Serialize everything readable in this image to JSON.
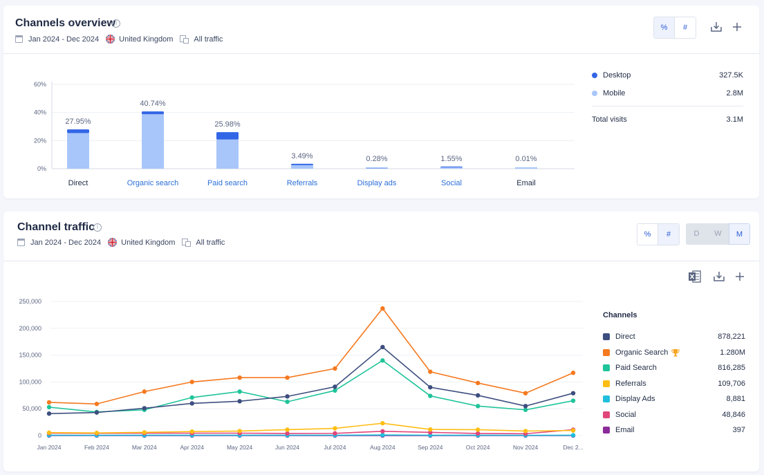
{
  "overview": {
    "title": "Channels overview",
    "info": "i",
    "date_range": "Jan 2024 - Dec 2024",
    "country": "United Kingdom",
    "traffic": "All traffic",
    "toggle": [
      "%",
      "#"
    ],
    "legend": [
      {
        "name": "Desktop",
        "value": "327.5K",
        "color": "#3366e6"
      },
      {
        "name": "Mobile",
        "value": "2.8M",
        "color": "#a8c6fa"
      }
    ],
    "total_label": "Total visits",
    "total_value": "3.1M"
  },
  "traffic": {
    "title": "Channel traffic",
    "info": "i",
    "date_range": "Jan 2024 - Dec 2024",
    "country": "United Kingdom",
    "traffic": "All traffic",
    "toggle": [
      "%",
      "#"
    ],
    "granularity": [
      "D",
      "W",
      "M"
    ],
    "legend_title": "Channels",
    "legend": [
      {
        "name": "Direct",
        "value": "878,221",
        "color": "#3d4e7f",
        "trophy": false
      },
      {
        "name": "Organic Search",
        "value": "1.280M",
        "color": "#f5791f",
        "trophy": true
      },
      {
        "name": "Paid Search",
        "value": "816,285",
        "color": "#1fc49a",
        "trophy": false
      },
      {
        "name": "Referrals",
        "value": "109,706",
        "color": "#ffbd14",
        "trophy": false
      },
      {
        "name": "Display Ads",
        "value": "8,881",
        "color": "#1fbfdd",
        "trophy": false
      },
      {
        "name": "Social",
        "value": "48,846",
        "color": "#e0457b",
        "trophy": false
      },
      {
        "name": "Email",
        "value": "397",
        "color": "#8a2b99",
        "trophy": false
      }
    ]
  },
  "chart_data": [
    {
      "type": "bar",
      "stacked": true,
      "categories": [
        "Direct",
        "Organic search",
        "Paid search",
        "Referrals",
        "Display ads",
        "Social",
        "Email"
      ],
      "category_colors": [
        "#1f2a44",
        "#2b6fd9",
        "#2b6fd9",
        "#2b6fd9",
        "#2b6fd9",
        "#2b6fd9",
        "#1f2a44"
      ],
      "data_labels": [
        "27.95%",
        "40.74%",
        "25.98%",
        "3.49%",
        "0.28%",
        "1.55%",
        "0.01%"
      ],
      "series": [
        {
          "name": "Mobile",
          "values": [
            25.3,
            38.7,
            20.8,
            2.5,
            0.2,
            1.0,
            0.01
          ],
          "color": "#a8c6fa"
        },
        {
          "name": "Desktop",
          "values": [
            2.65,
            2.04,
            5.18,
            0.99,
            0.08,
            0.55,
            0.0
          ],
          "color": "#3366e6"
        }
      ],
      "yticks": [
        "0%",
        "20%",
        "40%",
        "60%"
      ],
      "ylim": [
        0,
        60
      ],
      "grid": true
    },
    {
      "type": "line",
      "x": [
        "Jan 2024",
        "Feb 2024",
        "Mar 2024",
        "Apr 2024",
        "May 2024",
        "Jun 2024",
        "Jul 2024",
        "Aug 2024",
        "Sep 2024",
        "Oct 2024",
        "Nov 2024",
        "Dec 2..."
      ],
      "series": [
        {
          "name": "Direct",
          "color": "#3d4e7f",
          "values": [
            41000,
            43000,
            51000,
            60000,
            64000,
            73000,
            91000,
            165000,
            90000,
            75000,
            55000,
            79000
          ]
        },
        {
          "name": "Organic Search",
          "color": "#f5791f",
          "values": [
            62000,
            59000,
            82000,
            100000,
            108000,
            108000,
            125000,
            237000,
            119000,
            98000,
            79000,
            117000
          ]
        },
        {
          "name": "Paid Search",
          "color": "#1fc49a",
          "values": [
            53000,
            44000,
            48000,
            71000,
            82000,
            63000,
            84000,
            140000,
            74000,
            55000,
            48000,
            65000
          ]
        },
        {
          "name": "Referrals",
          "color": "#ffbd14",
          "values": [
            5500,
            5000,
            6000,
            7500,
            8500,
            11000,
            13500,
            23000,
            11500,
            11000,
            8500,
            9500
          ]
        },
        {
          "name": "Display Ads",
          "color": "#1fbfdd",
          "values": [
            700,
            600,
            700,
            800,
            700,
            700,
            800,
            1200,
            800,
            700,
            600,
            700
          ]
        },
        {
          "name": "Social",
          "color": "#e0457b",
          "values": [
            4500,
            4200,
            4500,
            4500,
            4500,
            4000,
            4200,
            8000,
            6000,
            4000,
            3500,
            11000
          ]
        },
        {
          "name": "Email",
          "color": "#8a2b99",
          "values": [
            30,
            30,
            30,
            30,
            30,
            30,
            30,
            40,
            30,
            30,
            30,
            30
          ]
        }
      ],
      "yticks": [
        "0",
        "50,000",
        "100,000",
        "150,000",
        "200,000",
        "250,000"
      ],
      "ylim": [
        0,
        250000
      ],
      "grid": true,
      "legend_position": "right"
    }
  ]
}
